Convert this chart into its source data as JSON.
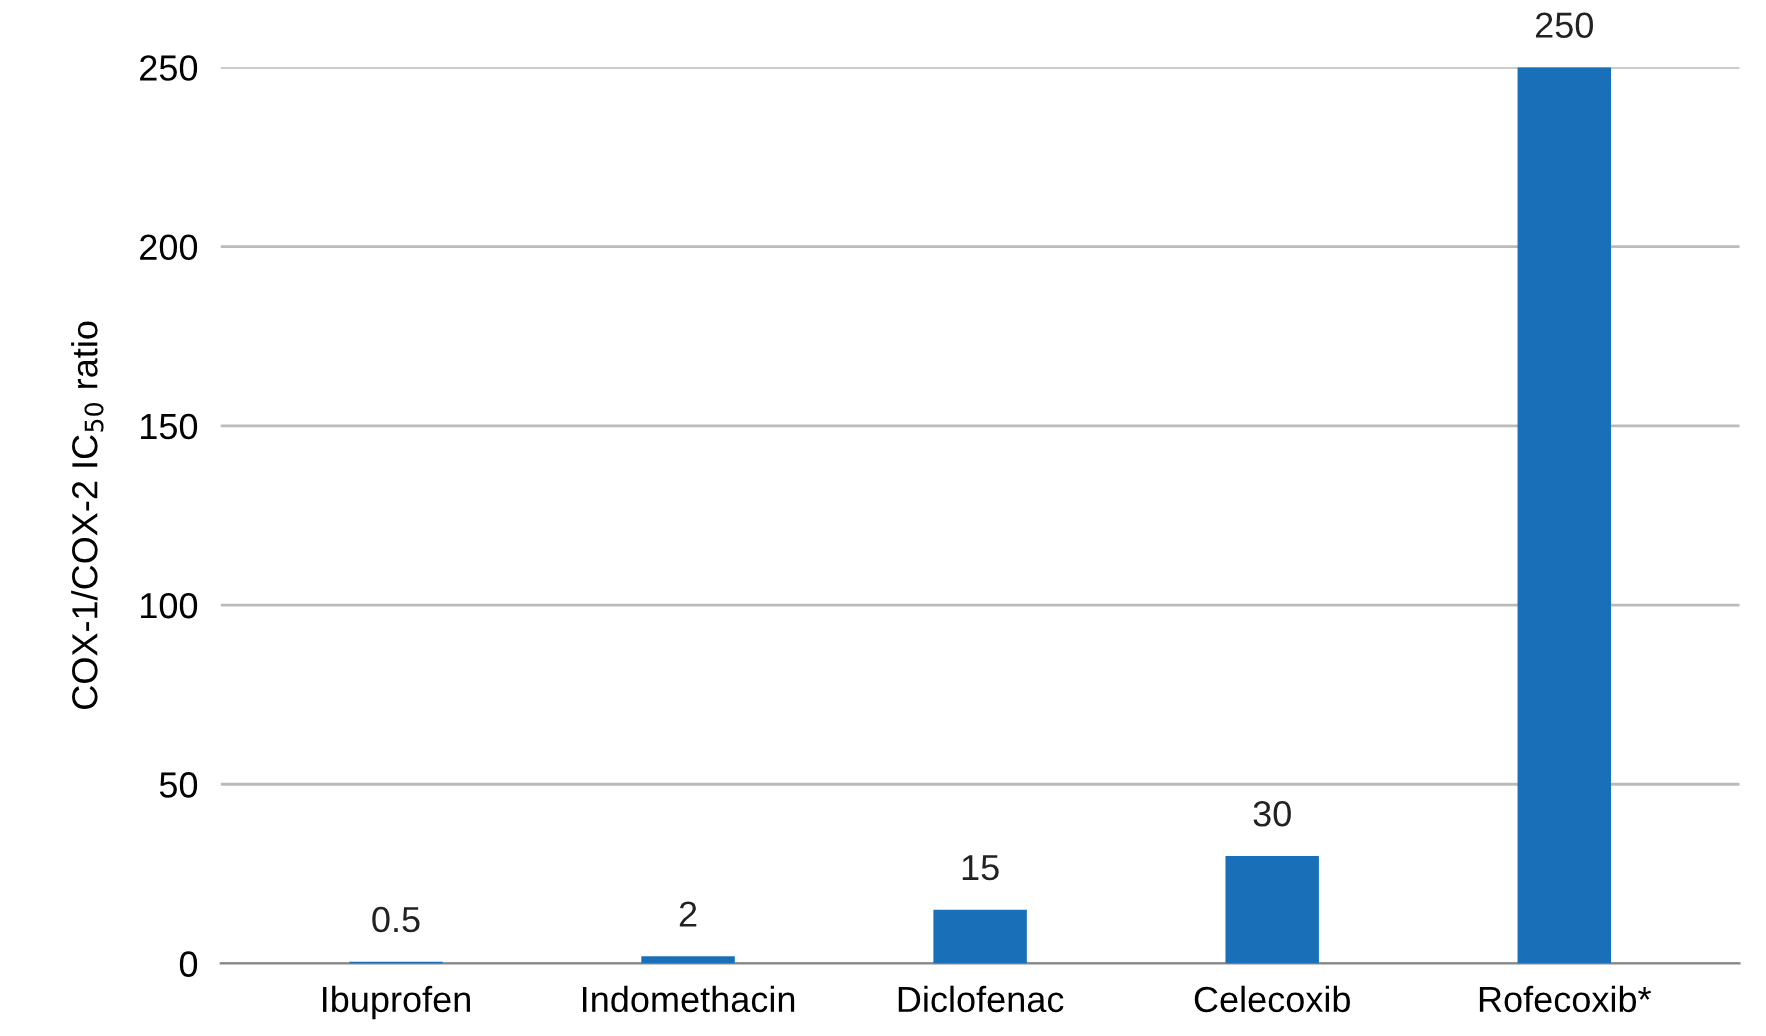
{
  "chart_data": {
    "type": "bar",
    "ylabel": "COX-1/COX-2 IC$_{50}$ ratio",
    "categories": [
      "Ibuprofen",
      "Indomethacin",
      "Diclofenac",
      "Celecoxib",
      "Rofecoxib*"
    ],
    "values": [
      0.5,
      2,
      15,
      30,
      250
    ],
    "color": "#1a70b8",
    "ylim": [
      0,
      250
    ],
    "yticks": [
      0,
      50,
      100,
      150,
      200,
      250
    ],
    "grid": "y",
    "data_labels": true
  }
}
